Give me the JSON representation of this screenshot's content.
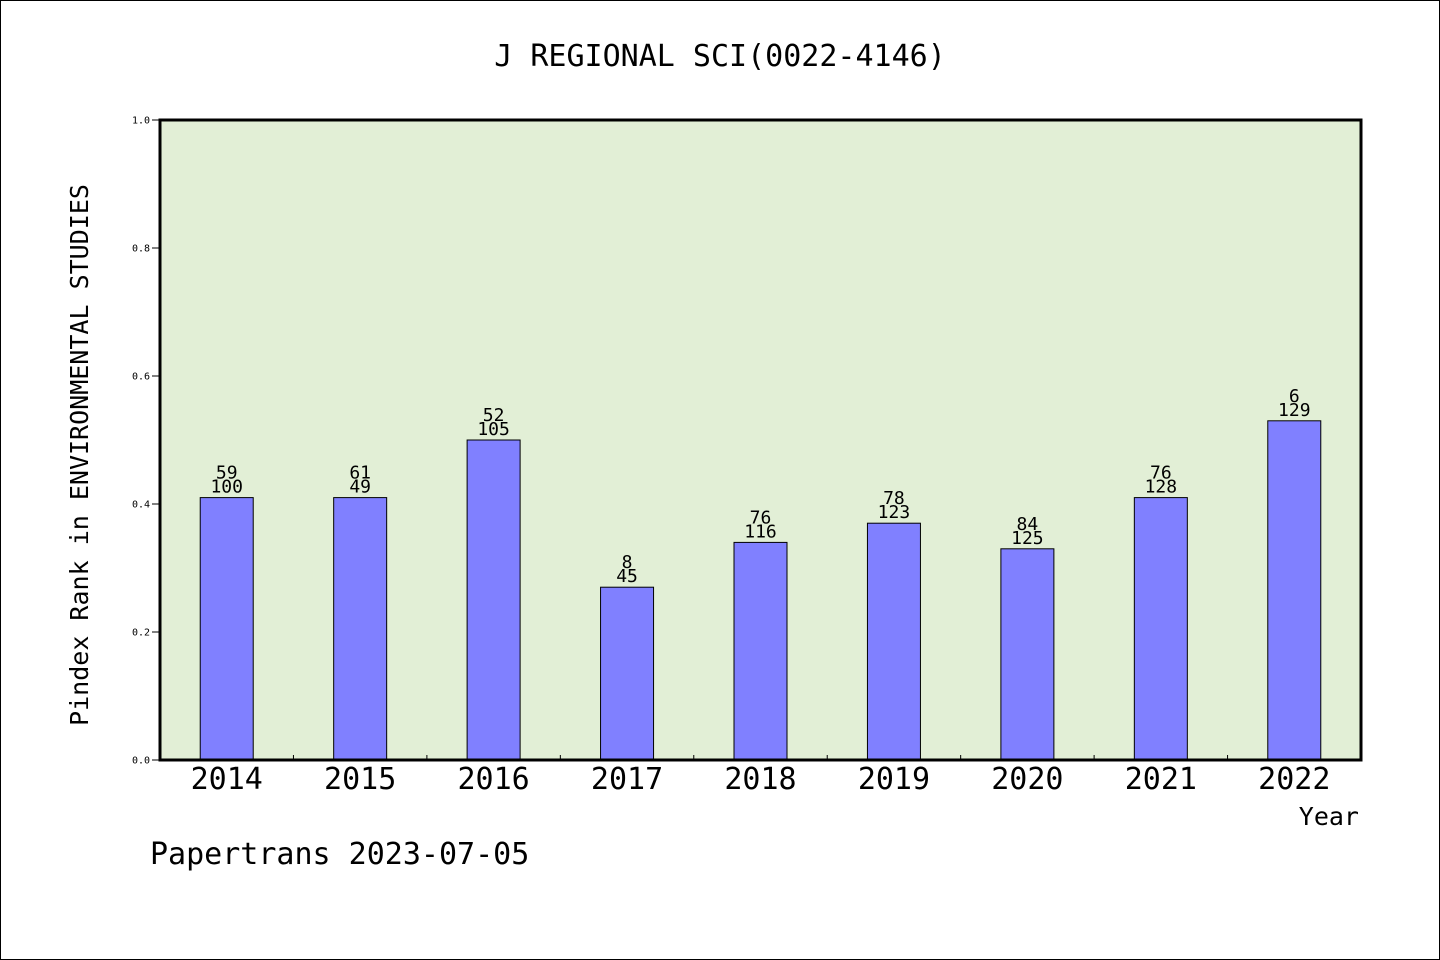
{
  "chart_data": {
    "type": "bar",
    "title": "J REGIONAL SCI(0022-4146)",
    "xlabel": "Year",
    "ylabel": "Pindex Rank in ENVIRONMENTAL STUDIES",
    "categories": [
      "2014",
      "2015",
      "2016",
      "2017",
      "2018",
      "2019",
      "2020",
      "2021",
      "2022"
    ],
    "values": [
      0.41,
      0.41,
      0.5,
      0.27,
      0.34,
      0.37,
      0.33,
      0.41,
      0.53
    ],
    "label_top": [
      "59",
      "61",
      "52",
      "8",
      "76",
      "78",
      "84",
      "76",
      "6"
    ],
    "label_bottom": [
      "100",
      "49",
      "105",
      "45",
      "116",
      "123",
      "125",
      "128",
      "129"
    ],
    "ylim": [
      0,
      1.0
    ],
    "yticks": [
      "0.0",
      "0.2",
      "0.4",
      "0.6",
      "0.8",
      "1.0"
    ],
    "grid": false,
    "bar_color": "#8080ff",
    "plot_background": "#e2efd6"
  },
  "footer": "Papertrans 2023-07-05"
}
